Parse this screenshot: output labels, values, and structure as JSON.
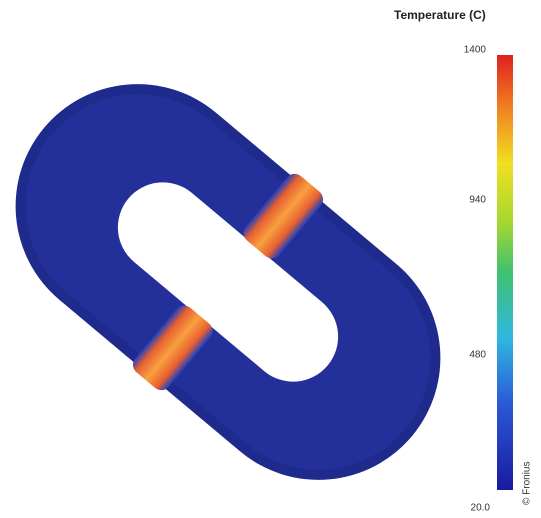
{
  "colorbar": {
    "title": "Temperature (C)",
    "ticks": [
      "1400",
      "940",
      "480",
      "20.0"
    ]
  },
  "credit": "© Fronius"
}
